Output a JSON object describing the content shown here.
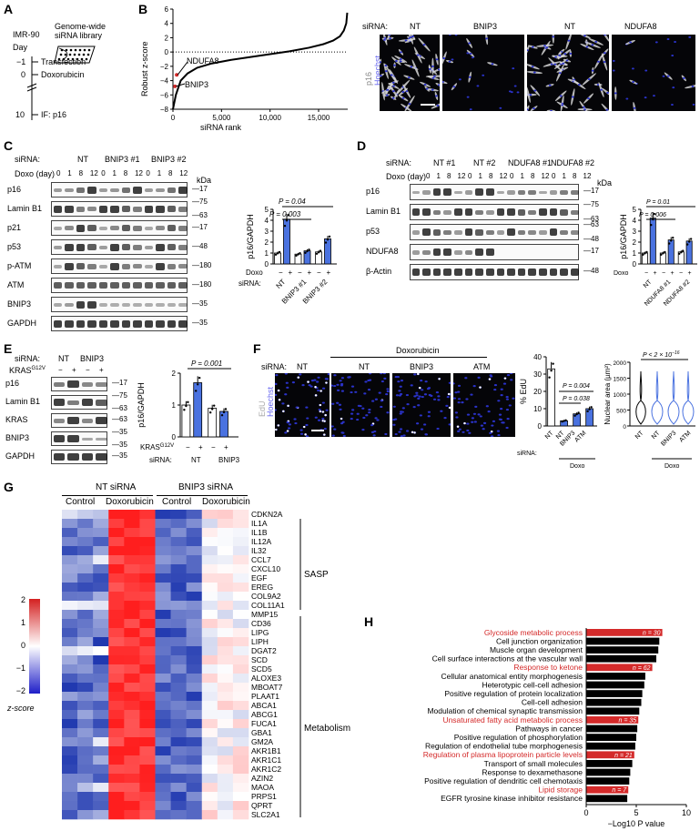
{
  "panels": {
    "A": {
      "letter": "A",
      "cell": "IMR-90",
      "day": "Day",
      "library": "Genome-wide siRNA library",
      "steps": [
        {
          "day": "−1",
          "label": "Transfection"
        },
        {
          "day": "0",
          "label": "Doxorubicin"
        },
        {
          "day": "10",
          "label": "IF: p16"
        }
      ]
    },
    "B": {
      "letter": "B",
      "ylabel": "Robust z-score",
      "xlabel": "siRNA rank",
      "yticks": [
        "6",
        "4",
        "2",
        "0",
        "−2",
        "−4",
        "−6",
        "−8"
      ],
      "xticks": [
        "0",
        "5,000",
        "10,000",
        "15,000"
      ],
      "labels": [
        "NDUFA8",
        "BNIP3"
      ],
      "img_prefix": "siRNA:",
      "img_labels": [
        "NT",
        "BNIP3",
        "NT",
        "NDUFA8"
      ],
      "stain1": "p16",
      "stain2": "Hoechst"
    },
    "C": {
      "letter": "C",
      "sirna_label": "siRNA:",
      "doxo_label": "Doxo (day)",
      "groups": [
        "NT",
        "BNIP3 #1",
        "BNIP3 #2"
      ],
      "days": [
        "0",
        "1",
        "8",
        "12"
      ],
      "kda": "kDa",
      "rows": [
        {
          "name": "p16",
          "mw": [
            "17"
          ]
        },
        {
          "name": "Lamin B1",
          "mw": [
            "75",
            "63"
          ]
        },
        {
          "name": "p21",
          "mw": [
            "17"
          ]
        },
        {
          "name": "p53",
          "mw": [
            "48"
          ]
        },
        {
          "name": "p-ATM",
          "mw": [
            "180"
          ]
        },
        {
          "name": "ATM",
          "mw": [
            "180"
          ]
        },
        {
          "name": "BNIP3",
          "mw": [
            "35"
          ]
        },
        {
          "name": "GAPDH",
          "mw": [
            "35"
          ]
        }
      ],
      "chart_ylabel": "p16/GAPDH",
      "pvals": [
        "P = 0.04",
        "P = 0.003"
      ],
      "doxo": "Doxo",
      "signs": [
        "−",
        "+"
      ],
      "sirna": "siRNA:",
      "xcats": [
        "NT",
        "BNIP3 #1",
        "BNIP3 #2"
      ],
      "yticks": [
        "0",
        "1",
        "2",
        "3",
        "4",
        "5"
      ]
    },
    "D": {
      "letter": "D",
      "sirna_label": "siRNA:",
      "doxo_label": "Doxo (day)",
      "groups": [
        "NT #1",
        "NT #2",
        "NDUFA8 #1",
        "NDUFA8 #2"
      ],
      "days": [
        "0",
        "1",
        "8",
        "12"
      ],
      "kda": "kDa",
      "rows": [
        {
          "name": "p16",
          "mw": [
            "17"
          ]
        },
        {
          "name": "Lamin B1",
          "mw": [
            "75",
            "63"
          ]
        },
        {
          "name": "p53",
          "mw": [
            "63",
            "48"
          ]
        },
        {
          "name": "NDUFA8",
          "mw": [
            "17"
          ]
        },
        {
          "name": "β-Actin",
          "mw": [
            "48"
          ]
        }
      ],
      "chart_ylabel": "p16/GAPDH",
      "pvals": [
        "P = 0.01",
        "P = 0.006"
      ],
      "doxo": "Doxo",
      "signs": [
        "−",
        "+"
      ],
      "sirna": "siRNA:",
      "xcats": [
        "NT",
        "NDUFA8 #1",
        "NDUFA8 #2"
      ],
      "yticks": [
        "0",
        "1",
        "2",
        "3",
        "4",
        "5"
      ]
    },
    "E": {
      "letter": "E",
      "sirna_label": "siRNA:",
      "groups": [
        "NT",
        "BNIP3"
      ],
      "kras_label": "KRAS",
      "kras_sup": "G12V",
      "signs": [
        "−",
        "+",
        "−",
        "+"
      ],
      "rows": [
        {
          "name": "p16",
          "mw": [
            "17"
          ]
        },
        {
          "name": "Lamin B1",
          "mw": [
            "75",
            "63"
          ]
        },
        {
          "name": "KRAS",
          "mw": [
            "63"
          ]
        },
        {
          "name": "BNIP3",
          "mw": [
            "35",
            "35"
          ]
        },
        {
          "name": "GAPDH",
          "mw": [
            "35"
          ]
        }
      ],
      "chart_ylabel": "p16/GAPDH",
      "pval": "P = 0.001",
      "xcats": [
        "NT",
        "BNIP3"
      ],
      "yticks": [
        "0",
        "1",
        "2"
      ]
    },
    "F": {
      "letter": "F",
      "sirna_label": "siRNA:",
      "doxo_header": "Doxorubicin",
      "img_labels": [
        "NT",
        "NT",
        "BNIP3",
        "ATM"
      ],
      "stain1": "EdU",
      "stain2": "Hoechst",
      "edu_ylabel": "% EdU",
      "edu_pvals": [
        "P = 0.004",
        "P = 0.038"
      ],
      "edu_yticks": [
        "0",
        "10",
        "20",
        "30",
        "40"
      ],
      "xcats": [
        "NT",
        "NT",
        "BNIP3",
        "ATM"
      ],
      "doxo": "Doxo",
      "nuc_ylabel": "Nuclear area (µm²)",
      "nuc_pval": "P < 2 × 10",
      "nuc_exp": "−16",
      "nuc_yticks": [
        "0",
        "500",
        "1000",
        "1500",
        "2000"
      ]
    },
    "G": {
      "letter": "G",
      "col_groups": [
        "NT siRNA",
        "BNIP3 siRNA"
      ],
      "sub_groups": [
        "Control",
        "Doxorubicin",
        "Control",
        "Doxorubicin"
      ],
      "genes": [
        "CDKN2A",
        "IL1A",
        "IL1B",
        "IL12A",
        "IL32",
        "CCL7",
        "CXCL10",
        "EGF",
        "EREG",
        "COL9A2",
        "COL11A1",
        "MMP15",
        "CD36",
        "LIPG",
        "LIPH",
        "DGAT2",
        "SCD",
        "SCD5",
        "ALOXE3",
        "MBOAT7",
        "PLAAT1",
        "ABCA1",
        "ABCG1",
        "FUCA1",
        "GBA1",
        "GM2A",
        "AKR1B1",
        "AKR1C1",
        "AKR1C2",
        "AZIN2",
        "MAOA",
        "PRPS1",
        "QPRT",
        "SLC2A1"
      ],
      "bracket_labels": [
        "SASP",
        "Metabolism"
      ],
      "legend_ticks": [
        "2",
        "1",
        "0",
        "−1",
        "−2"
      ],
      "legend_title": "z-score"
    },
    "H": {
      "letter": "H",
      "xlabel": "−Log10 P value",
      "xticks": [
        "0",
        "5",
        "10"
      ]
    }
  },
  "chart_data": [
    {
      "type": "scatter",
      "title": "",
      "xlabel": "siRNA rank",
      "ylabel": "Robust z-score",
      "xlim": [
        0,
        18000
      ],
      "ylim": [
        -8,
        6
      ],
      "series": [
        {
          "name": "",
          "x": [
            0,
            300,
            800,
            1500,
            2500,
            4000,
            6000,
            8000,
            10000,
            12000,
            14000,
            15500,
            16500,
            17200,
            17600,
            17850,
            17950
          ],
          "y": [
            -8,
            -6,
            -4,
            -3,
            -2.2,
            -1.6,
            -1.1,
            -0.7,
            -0.3,
            0.1,
            0.6,
            1.1,
            1.6,
            2.2,
            3,
            4,
            5.5
          ]
        }
      ],
      "highlights": [
        {
          "name": "NDUFA8",
          "x": 200,
          "y": -3.2
        },
        {
          "name": "BNIP3",
          "x": 20,
          "y": -4.8
        }
      ]
    },
    {
      "type": "bar",
      "title": "",
      "ylabel": "p16/GAPDH",
      "categories": [
        "NT −",
        "NT +",
        "BNIP3 #1 −",
        "BNIP3 #1 +",
        "BNIP3 #2 −",
        "BNIP3 #2 +"
      ],
      "values": [
        1,
        4.1,
        0.9,
        1.2,
        1.1,
        2.3
      ],
      "ylim": [
        0,
        5
      ]
    },
    {
      "type": "bar",
      "title": "",
      "ylabel": "p16/GAPDH",
      "categories": [
        "NT −",
        "NT +",
        "NDUFA8 #1 −",
        "NDUFA8 #1 +",
        "NDUFA8 #2 −",
        "NDUFA8 #2 +"
      ],
      "values": [
        1,
        4.2,
        1.0,
        2.2,
        1.1,
        2.1
      ],
      "ylim": [
        0,
        5
      ]
    },
    {
      "type": "bar",
      "title": "",
      "ylabel": "p16/GAPDH",
      "categories": [
        "NT −",
        "NT +",
        "BNIP3 −",
        "BNIP3 +"
      ],
      "values": [
        1,
        1.7,
        0.9,
        0.8
      ],
      "ylim": [
        0,
        2
      ]
    },
    {
      "type": "bar",
      "title": "",
      "ylabel": "% EdU",
      "categories": [
        "NT",
        "NT",
        "BNIP3",
        "ATM"
      ],
      "values": [
        33,
        3,
        7,
        10
      ],
      "ylim": [
        0,
        40
      ]
    },
    {
      "type": "bar",
      "title": "",
      "xlabel": "−Log10 P value",
      "xlim": [
        0,
        10
      ],
      "categories": [
        "Glycoside metabolic process",
        "Cell junction organization",
        "Muscle organ development",
        "Cell surface interactions at the vascular wall",
        "Response to ketone",
        "Cellular anatomical entity morphogenesis",
        "Heterotypic cell-cell adhesion",
        "Positive regulation of protein localization",
        "Cell-cell adhesion",
        "Modulation of chemical synaptic transmission",
        "Unsaturated fatty acid metabolic process",
        "Pathways in cancer",
        "Positive regulation of phosphorylation",
        "Regulation of endothelial tube morphogenesis",
        "Regulation of plasma lipoprotein particle levels",
        "Transport of small molecules",
        "Response to dexamethasone",
        "Positive regulation of dendritic cell chemotaxis",
        "Lipid storage",
        "EGFR tyrosine kinase inhibitor resistance"
      ],
      "values": [
        7.6,
        7.3,
        7.2,
        7.0,
        6.6,
        5.9,
        5.8,
        5.6,
        5.5,
        5.3,
        5.2,
        5.1,
        5.0,
        4.9,
        4.8,
        4.6,
        4.4,
        4.3,
        4.2,
        4.1
      ],
      "highlight": [
        true,
        false,
        false,
        false,
        true,
        false,
        false,
        false,
        false,
        false,
        true,
        false,
        false,
        false,
        true,
        false,
        false,
        false,
        true,
        false
      ],
      "annotations": [
        "n = 30",
        "",
        "",
        "",
        "n = 62",
        "",
        "",
        "",
        "",
        "",
        "n = 35",
        "",
        "",
        "",
        "n = 21",
        "",
        "",
        "",
        "n = 7",
        ""
      ],
      "colors": {
        "highlight": "#d42a2a",
        "default": "#000000"
      }
    }
  ]
}
